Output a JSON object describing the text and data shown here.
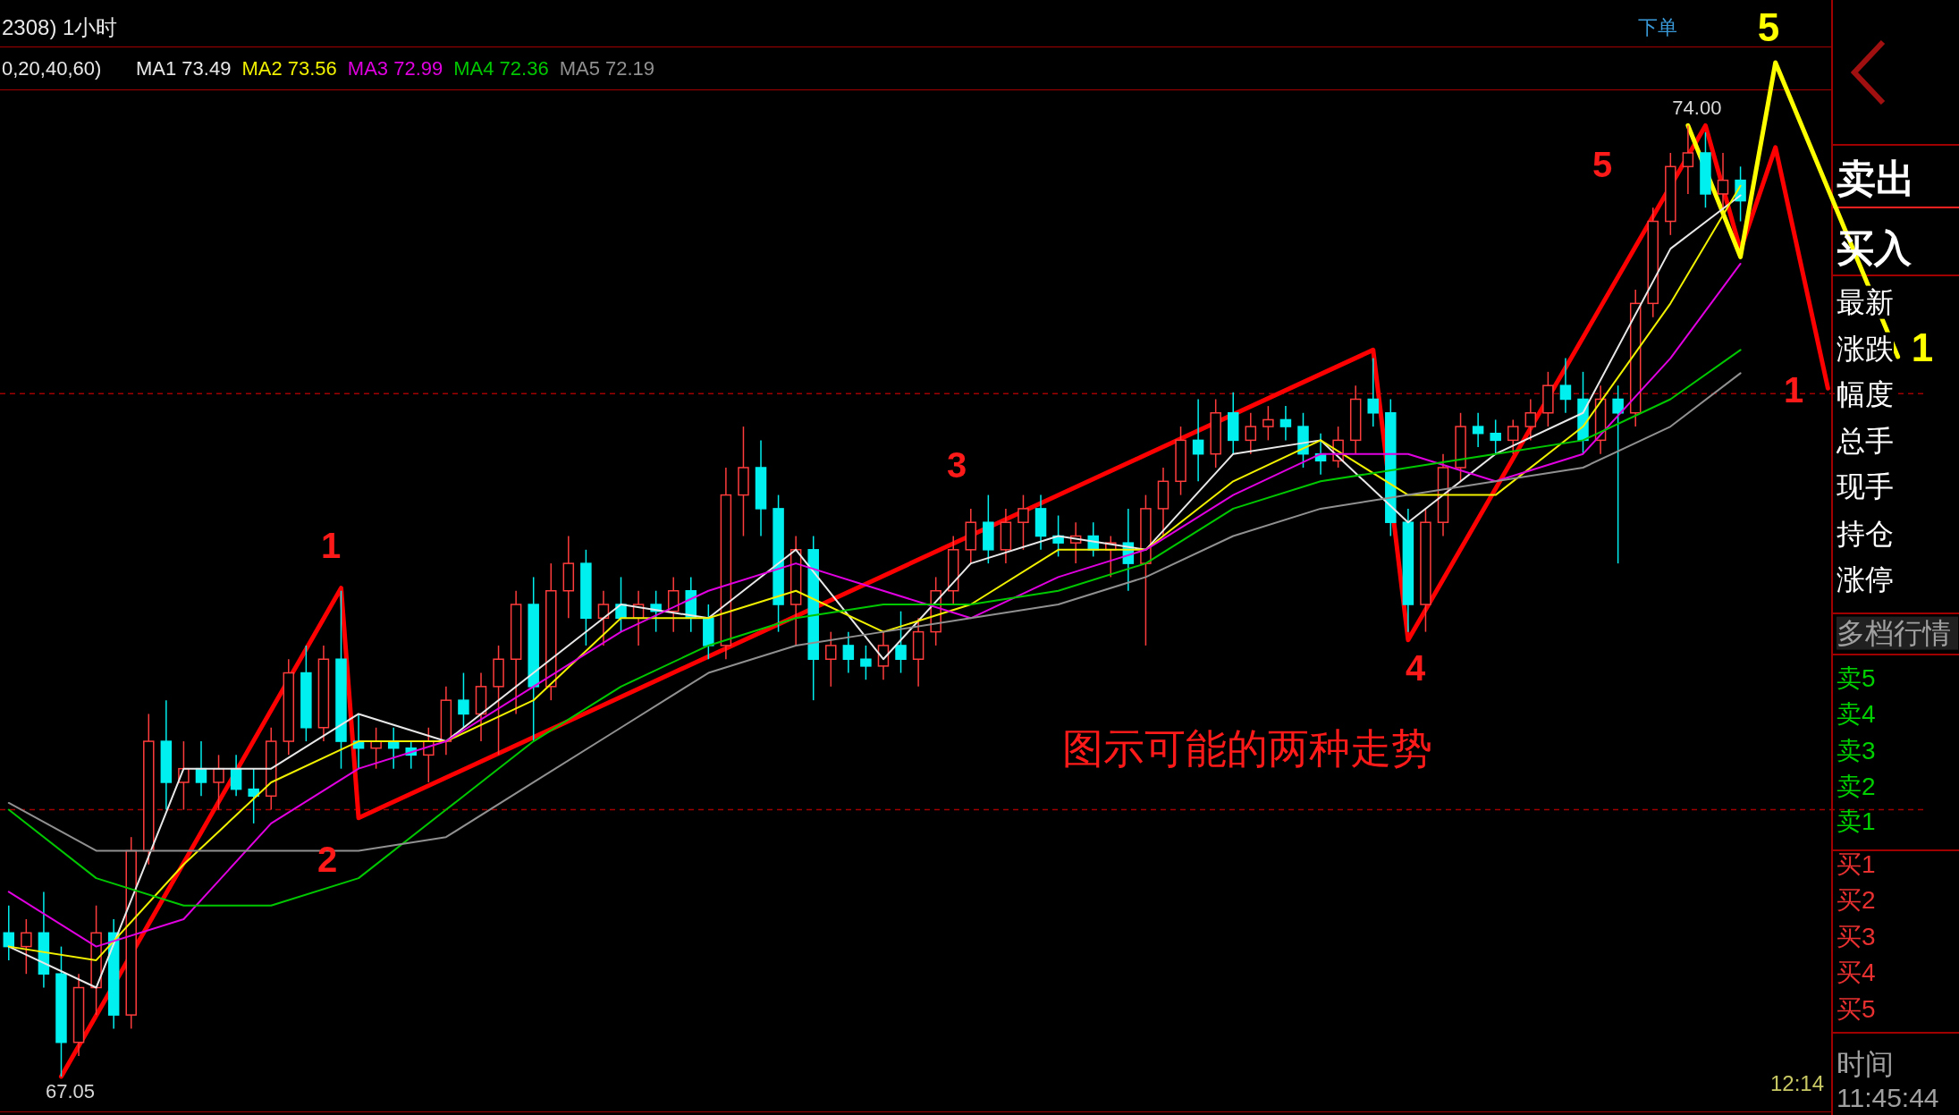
{
  "chart_data": {
    "type": "candlestick",
    "categories": [
      null,
      null,
      null,
      null,
      null,
      null,
      null,
      null,
      null,
      null,
      null,
      null,
      null,
      null,
      null,
      null,
      null,
      null,
      null,
      null,
      null,
      null,
      null,
      null,
      null,
      null,
      null,
      null,
      null,
      null,
      null,
      null,
      null,
      null,
      null,
      null,
      null,
      null,
      null,
      null,
      null,
      null,
      null,
      null,
      null,
      null,
      null,
      null,
      null,
      null,
      null,
      null,
      null,
      null,
      null,
      null,
      null,
      null,
      null,
      null,
      null,
      null,
      null,
      null,
      null,
      null,
      null,
      null,
      null,
      null,
      null,
      null,
      null,
      null,
      null,
      null,
      null,
      null,
      null,
      null,
      null,
      null,
      null,
      null,
      null,
      null,
      null,
      null,
      null,
      null,
      null,
      null,
      null,
      null,
      null,
      null,
      null,
      null,
      null,
      null,
      null,
      null,
      null,
      null,
      null,
      null,
      null,
      null,
      null,
      null
    ],
    "ohlc": [
      [
        68.1,
        68.3,
        67.9,
        68.0
      ],
      [
        68.0,
        68.2,
        67.8,
        68.1
      ],
      [
        68.1,
        68.4,
        67.7,
        67.8
      ],
      [
        67.8,
        68.0,
        67.05,
        67.3
      ],
      [
        67.3,
        67.8,
        67.2,
        67.7
      ],
      [
        67.7,
        68.3,
        67.5,
        68.1
      ],
      [
        68.1,
        68.2,
        67.4,
        67.5
      ],
      [
        67.5,
        68.8,
        67.4,
        68.7
      ],
      [
        68.7,
        69.7,
        68.6,
        69.5
      ],
      [
        69.5,
        69.8,
        69.0,
        69.2
      ],
      [
        69.2,
        69.5,
        69.0,
        69.3
      ],
      [
        69.3,
        69.5,
        69.1,
        69.2
      ],
      [
        69.2,
        69.4,
        69.0,
        69.3
      ],
      [
        69.3,
        69.4,
        69.1,
        69.15
      ],
      [
        69.15,
        69.3,
        68.9,
        69.1
      ],
      [
        69.1,
        69.6,
        69.0,
        69.5
      ],
      [
        69.5,
        70.1,
        69.4,
        70.0
      ],
      [
        70.0,
        70.2,
        69.5,
        69.6
      ],
      [
        69.6,
        70.2,
        69.5,
        70.1
      ],
      [
        70.1,
        70.6,
        69.3,
        69.5
      ],
      [
        69.5,
        69.7,
        69.3,
        69.45
      ],
      [
        69.45,
        69.6,
        69.3,
        69.5
      ],
      [
        69.5,
        69.6,
        69.3,
        69.45
      ],
      [
        69.45,
        69.5,
        69.3,
        69.4
      ],
      [
        69.4,
        69.6,
        69.2,
        69.5
      ],
      [
        69.5,
        69.9,
        69.4,
        69.8
      ],
      [
        69.8,
        70.0,
        69.6,
        69.7
      ],
      [
        69.7,
        70.0,
        69.5,
        69.9
      ],
      [
        69.9,
        70.2,
        69.4,
        70.1
      ],
      [
        70.1,
        70.6,
        69.7,
        70.5
      ],
      [
        70.5,
        70.7,
        69.5,
        69.9
      ],
      [
        69.9,
        70.8,
        69.8,
        70.6
      ],
      [
        70.6,
        71.0,
        70.4,
        70.8
      ],
      [
        70.8,
        70.9,
        70.2,
        70.4
      ],
      [
        70.4,
        70.6,
        70.2,
        70.5
      ],
      [
        70.5,
        70.7,
        70.3,
        70.4
      ],
      [
        70.4,
        70.6,
        70.2,
        70.5
      ],
      [
        70.5,
        70.6,
        70.3,
        70.45
      ],
      [
        70.45,
        70.7,
        70.3,
        70.6
      ],
      [
        70.6,
        70.7,
        70.3,
        70.4
      ],
      [
        70.4,
        70.5,
        70.1,
        70.2
      ],
      [
        70.2,
        71.5,
        70.1,
        71.3
      ],
      [
        71.3,
        71.8,
        71.0,
        71.5
      ],
      [
        71.5,
        71.7,
        71.0,
        71.2
      ],
      [
        71.2,
        71.3,
        70.3,
        70.5
      ],
      [
        70.5,
        71.0,
        70.2,
        70.9
      ],
      [
        70.9,
        71.0,
        69.8,
        70.1
      ],
      [
        70.1,
        70.3,
        69.9,
        70.2
      ],
      [
        70.2,
        70.3,
        70.0,
        70.1
      ],
      [
        70.1,
        70.2,
        69.95,
        70.05
      ],
      [
        70.05,
        70.3,
        69.95,
        70.2
      ],
      [
        70.2,
        70.45,
        70.0,
        70.1
      ],
      [
        70.1,
        70.4,
        69.9,
        70.3
      ],
      [
        70.3,
        70.7,
        70.2,
        70.6
      ],
      [
        70.6,
        71.0,
        70.5,
        70.9
      ],
      [
        70.9,
        71.2,
        70.8,
        71.1
      ],
      [
        71.1,
        71.3,
        70.8,
        70.9
      ],
      [
        70.9,
        71.2,
        70.8,
        71.1
      ],
      [
        71.1,
        71.3,
        70.9,
        71.2
      ],
      [
        71.2,
        71.3,
        70.9,
        71.0
      ],
      [
        71.0,
        71.15,
        70.85,
        70.95
      ],
      [
        70.95,
        71.1,
        70.8,
        71.0
      ],
      [
        71.0,
        71.1,
        70.85,
        70.9
      ],
      [
        70.9,
        71.0,
        70.7,
        70.95
      ],
      [
        70.95,
        71.2,
        70.6,
        70.8
      ],
      [
        70.8,
        71.3,
        70.2,
        71.2
      ],
      [
        71.2,
        71.5,
        71.0,
        71.4
      ],
      [
        71.4,
        71.8,
        71.3,
        71.7
      ],
      [
        71.7,
        72.0,
        71.4,
        71.6
      ],
      [
        71.6,
        72.0,
        71.5,
        71.9
      ],
      [
        71.9,
        72.05,
        71.6,
        71.7
      ],
      [
        71.7,
        71.9,
        71.6,
        71.8
      ],
      [
        71.8,
        71.95,
        71.7,
        71.85
      ],
      [
        71.85,
        71.95,
        71.7,
        71.8
      ],
      [
        71.8,
        71.9,
        71.5,
        71.6
      ],
      [
        71.6,
        71.75,
        71.45,
        71.55
      ],
      [
        71.55,
        71.8,
        71.5,
        71.7
      ],
      [
        71.7,
        72.1,
        71.6,
        72.0
      ],
      [
        72.0,
        72.3,
        71.8,
        71.9
      ],
      [
        71.9,
        72.0,
        71.0,
        71.1
      ],
      [
        71.1,
        71.2,
        70.3,
        70.5
      ],
      [
        70.5,
        71.2,
        70.3,
        71.1
      ],
      [
        71.1,
        71.6,
        71.0,
        71.5
      ],
      [
        71.5,
        71.9,
        71.4,
        71.8
      ],
      [
        71.8,
        71.9,
        71.65,
        71.75
      ],
      [
        71.75,
        71.85,
        71.6,
        71.7
      ],
      [
        71.7,
        71.85,
        71.6,
        71.8
      ],
      [
        71.8,
        72.0,
        71.7,
        71.9
      ],
      [
        71.9,
        72.2,
        71.8,
        72.1
      ],
      [
        72.1,
        72.3,
        71.9,
        72.0
      ],
      [
        72.0,
        72.2,
        71.6,
        71.7
      ],
      [
        71.7,
        72.1,
        71.6,
        72.0
      ],
      [
        72.0,
        72.1,
        70.8,
        71.9
      ],
      [
        71.9,
        72.8,
        71.8,
        72.7
      ],
      [
        72.7,
        73.4,
        72.6,
        73.3
      ],
      [
        73.3,
        73.8,
        73.2,
        73.7
      ],
      [
        73.7,
        74.0,
        73.5,
        73.8
      ],
      [
        73.8,
        73.95,
        73.4,
        73.5
      ],
      [
        73.5,
        73.8,
        73.4,
        73.6
      ],
      [
        73.6,
        73.7,
        73.3,
        73.45
      ],
      null,
      null,
      null,
      null,
      null,
      null,
      null,
      null,
      null,
      null
    ],
    "value_labels": [
      null,
      null,
      null,
      "67.05",
      null,
      null,
      null,
      null,
      null,
      null,
      null,
      null,
      null,
      null,
      null,
      null,
      null,
      null,
      null,
      null,
      null,
      null,
      null,
      null,
      null,
      null,
      null,
      null,
      null,
      null,
      null,
      null,
      null,
      null,
      null,
      null,
      null,
      null,
      null,
      null,
      null,
      null,
      null,
      null,
      null,
      null,
      null,
      null,
      null,
      null,
      null,
      null,
      null,
      null,
      null,
      null,
      null,
      null,
      null,
      null,
      null,
      null,
      null,
      null,
      null,
      null,
      null,
      null,
      null,
      null,
      null,
      null,
      null,
      null,
      null,
      null,
      null,
      null,
      null,
      null,
      null,
      null,
      null,
      null,
      null,
      null,
      null,
      null,
      null,
      null,
      null,
      null,
      null,
      null,
      null,
      null,
      "74.00",
      null,
      null,
      null,
      null,
      null,
      null,
      null,
      null,
      null,
      null,
      null,
      null,
      null
    ],
    "series": [
      {
        "type": "line",
        "name": "MA1 73.49",
        "color": "#e8e8e8",
        "values": [
          68.0,
          null,
          null,
          null,
          null,
          67.7,
          null,
          null,
          null,
          null,
          69.3,
          null,
          null,
          null,
          null,
          69.3,
          null,
          null,
          null,
          null,
          69.7,
          null,
          null,
          null,
          null,
          69.5,
          null,
          null,
          null,
          null,
          70.0,
          null,
          null,
          null,
          null,
          70.5,
          null,
          null,
          null,
          null,
          70.4,
          null,
          null,
          null,
          null,
          70.9,
          null,
          null,
          null,
          null,
          70.1,
          null,
          null,
          null,
          null,
          70.8,
          null,
          null,
          null,
          null,
          71.0,
          null,
          null,
          null,
          null,
          70.9,
          null,
          null,
          null,
          null,
          71.6,
          null,
          null,
          null,
          null,
          71.7,
          null,
          null,
          null,
          null,
          71.1,
          null,
          null,
          null,
          null,
          71.6,
          null,
          null,
          null,
          null,
          71.9,
          null,
          null,
          null,
          null,
          73.1,
          null,
          null,
          null,
          73.49,
          null,
          null,
          null,
          null,
          null,
          null,
          null,
          null,
          null,
          null
        ]
      },
      {
        "type": "line",
        "name": "MA2 73.56",
        "color": "#f0f000",
        "values": [
          68.0,
          null,
          null,
          null,
          null,
          67.9,
          null,
          null,
          null,
          null,
          68.6,
          null,
          null,
          null,
          null,
          69.2,
          null,
          null,
          null,
          null,
          69.5,
          null,
          null,
          null,
          null,
          69.5,
          null,
          null,
          null,
          null,
          69.8,
          null,
          null,
          null,
          null,
          70.4,
          null,
          null,
          null,
          null,
          70.4,
          null,
          null,
          null,
          null,
          70.6,
          null,
          null,
          null,
          null,
          70.3,
          null,
          null,
          null,
          null,
          70.5,
          null,
          null,
          null,
          null,
          70.9,
          null,
          null,
          null,
          null,
          70.9,
          null,
          null,
          null,
          null,
          71.4,
          null,
          null,
          null,
          null,
          71.7,
          null,
          null,
          null,
          null,
          71.3,
          null,
          null,
          null,
          null,
          71.3,
          null,
          null,
          null,
          null,
          71.8,
          null,
          null,
          null,
          null,
          72.7,
          null,
          null,
          null,
          73.56,
          null,
          null,
          null,
          null,
          null,
          null,
          null,
          null,
          null,
          null
        ]
      },
      {
        "type": "line",
        "name": "MA3 72.99",
        "color": "#e000e0",
        "values": [
          68.4,
          null,
          null,
          null,
          null,
          68.0,
          null,
          null,
          null,
          null,
          68.2,
          null,
          null,
          null,
          null,
          68.9,
          null,
          null,
          null,
          null,
          69.3,
          null,
          null,
          null,
          null,
          69.5,
          null,
          null,
          null,
          null,
          69.9,
          null,
          null,
          null,
          null,
          70.3,
          null,
          null,
          null,
          null,
          70.6,
          null,
          null,
          null,
          null,
          70.8,
          null,
          null,
          null,
          null,
          70.6,
          null,
          null,
          null,
          null,
          70.4,
          null,
          null,
          null,
          null,
          70.7,
          null,
          null,
          null,
          null,
          70.9,
          null,
          null,
          null,
          null,
          71.3,
          null,
          null,
          null,
          null,
          71.6,
          null,
          null,
          null,
          null,
          71.6,
          null,
          null,
          null,
          null,
          71.4,
          null,
          null,
          null,
          null,
          71.6,
          null,
          null,
          null,
          null,
          72.3,
          null,
          null,
          null,
          72.99,
          null,
          null,
          null,
          null,
          null,
          null,
          null,
          null,
          null,
          null
        ]
      },
      {
        "type": "line",
        "name": "MA4 72.36",
        "color": "#00c800",
        "values": [
          69.0,
          null,
          null,
          null,
          null,
          68.5,
          null,
          null,
          null,
          null,
          68.3,
          null,
          null,
          null,
          null,
          68.3,
          null,
          null,
          null,
          null,
          68.5,
          null,
          null,
          null,
          null,
          69.0,
          null,
          null,
          null,
          null,
          69.5,
          null,
          null,
          null,
          null,
          69.9,
          null,
          null,
          null,
          null,
          70.2,
          null,
          null,
          null,
          null,
          70.4,
          null,
          null,
          null,
          null,
          70.5,
          null,
          null,
          null,
          null,
          70.5,
          null,
          null,
          null,
          null,
          70.6,
          null,
          null,
          null,
          null,
          70.8,
          null,
          null,
          null,
          null,
          71.2,
          null,
          null,
          null,
          null,
          71.4,
          null,
          null,
          null,
          null,
          71.5,
          null,
          null,
          null,
          null,
          71.6,
          null,
          null,
          null,
          null,
          71.7,
          null,
          null,
          null,
          null,
          72.0,
          null,
          null,
          null,
          72.36,
          null,
          null,
          null,
          null,
          null,
          null,
          null,
          null,
          null,
          null
        ]
      },
      {
        "type": "line",
        "name": "MA5 72.19",
        "color": "#909090",
        "values": [
          69.05,
          null,
          null,
          null,
          null,
          68.7,
          null,
          null,
          null,
          null,
          68.7,
          null,
          null,
          null,
          null,
          68.7,
          null,
          null,
          null,
          null,
          68.7,
          null,
          null,
          null,
          null,
          68.8,
          null,
          null,
          null,
          null,
          69.2,
          null,
          null,
          null,
          null,
          69.6,
          null,
          null,
          null,
          null,
          70.0,
          null,
          null,
          null,
          null,
          70.2,
          null,
          null,
          null,
          null,
          70.3,
          null,
          null,
          null,
          null,
          70.4,
          null,
          null,
          null,
          null,
          70.5,
          null,
          null,
          null,
          null,
          70.7,
          null,
          null,
          null,
          null,
          71.0,
          null,
          null,
          null,
          null,
          71.2,
          null,
          null,
          null,
          null,
          71.3,
          null,
          null,
          null,
          null,
          71.4,
          null,
          null,
          null,
          null,
          71.5,
          null,
          null,
          null,
          null,
          71.8,
          null,
          null,
          null,
          72.19,
          null,
          null,
          null,
          null,
          null,
          null,
          null,
          null,
          null,
          null
        ]
      },
      {
        "type": "line",
        "color": "#ff0000",
        "values": [
          null,
          null,
          null,
          67.05,
          null,
          null,
          null,
          null,
          null,
          null,
          null,
          null,
          null,
          null,
          null,
          null,
          null,
          null,
          null,
          70.62,
          68.94,
          null,
          null,
          null,
          null,
          null,
          null,
          null,
          null,
          null,
          null,
          null,
          null,
          null,
          null,
          null,
          null,
          null,
          null,
          null,
          null,
          null,
          null,
          null,
          null,
          null,
          null,
          null,
          null,
          null,
          null,
          null,
          null,
          null,
          null,
          null,
          null,
          null,
          null,
          null,
          null,
          null,
          null,
          null,
          null,
          null,
          null,
          null,
          null,
          null,
          null,
          null,
          null,
          null,
          null,
          null,
          null,
          null,
          72.36,
          null,
          70.24,
          null,
          null,
          null,
          null,
          null,
          null,
          null,
          null,
          null,
          null,
          null,
          null,
          null,
          null,
          null,
          null,
          74.0,
          null,
          73.09,
          null,
          73.84,
          null,
          null,
          72.08,
          null,
          null,
          null,
          null,
          null
        ]
      },
      {
        "type": "line",
        "color": "#ffff00",
        "values": [
          null,
          null,
          null,
          null,
          null,
          null,
          null,
          null,
          null,
          null,
          null,
          null,
          null,
          null,
          null,
          null,
          null,
          null,
          null,
          null,
          null,
          null,
          null,
          null,
          null,
          null,
          null,
          null,
          null,
          null,
          null,
          null,
          null,
          null,
          null,
          null,
          null,
          null,
          null,
          null,
          null,
          null,
          null,
          null,
          null,
          null,
          null,
          null,
          null,
          null,
          null,
          null,
          null,
          null,
          null,
          null,
          null,
          null,
          null,
          null,
          null,
          null,
          null,
          null,
          null,
          null,
          null,
          null,
          null,
          null,
          null,
          null,
          null,
          null,
          null,
          null,
          null,
          null,
          null,
          null,
          null,
          null,
          null,
          null,
          null,
          null,
          null,
          null,
          null,
          null,
          null,
          null,
          null,
          null,
          null,
          null,
          74.0,
          null,
          null,
          73.04,
          null,
          74.46,
          null,
          null,
          null,
          null,
          null,
          null,
          72.31,
          null
        ]
      }
    ],
    "ref_lines": [
      {
        "axis": "y",
        "value": 72.04,
        "color": "#a00000",
        "line_style": "dashed"
      },
      {
        "axis": "y",
        "value": 69.0,
        "color": "#a00000",
        "line_style": "dashed"
      }
    ],
    "annotations": [
      "2308) 1小时",
      "0,20,40,60)",
      "下单",
      "卖出",
      "买入",
      "最新",
      "涨跌",
      "幅度",
      "总手",
      "现手",
      "持仓",
      "涨停",
      "多档行情",
      "卖5",
      "卖4",
      "卖3",
      "卖2",
      "卖1",
      "买1",
      "买2",
      "买3",
      "买4",
      "买5",
      "时间",
      "11:45:44",
      "12:14",
      "图示可能的两种走势",
      "1",
      "2",
      "3",
      "4",
      "5",
      "1",
      "5",
      "1"
    ],
    "legend": "top left",
    "grid": false,
    "tick_labels": false
  }
}
